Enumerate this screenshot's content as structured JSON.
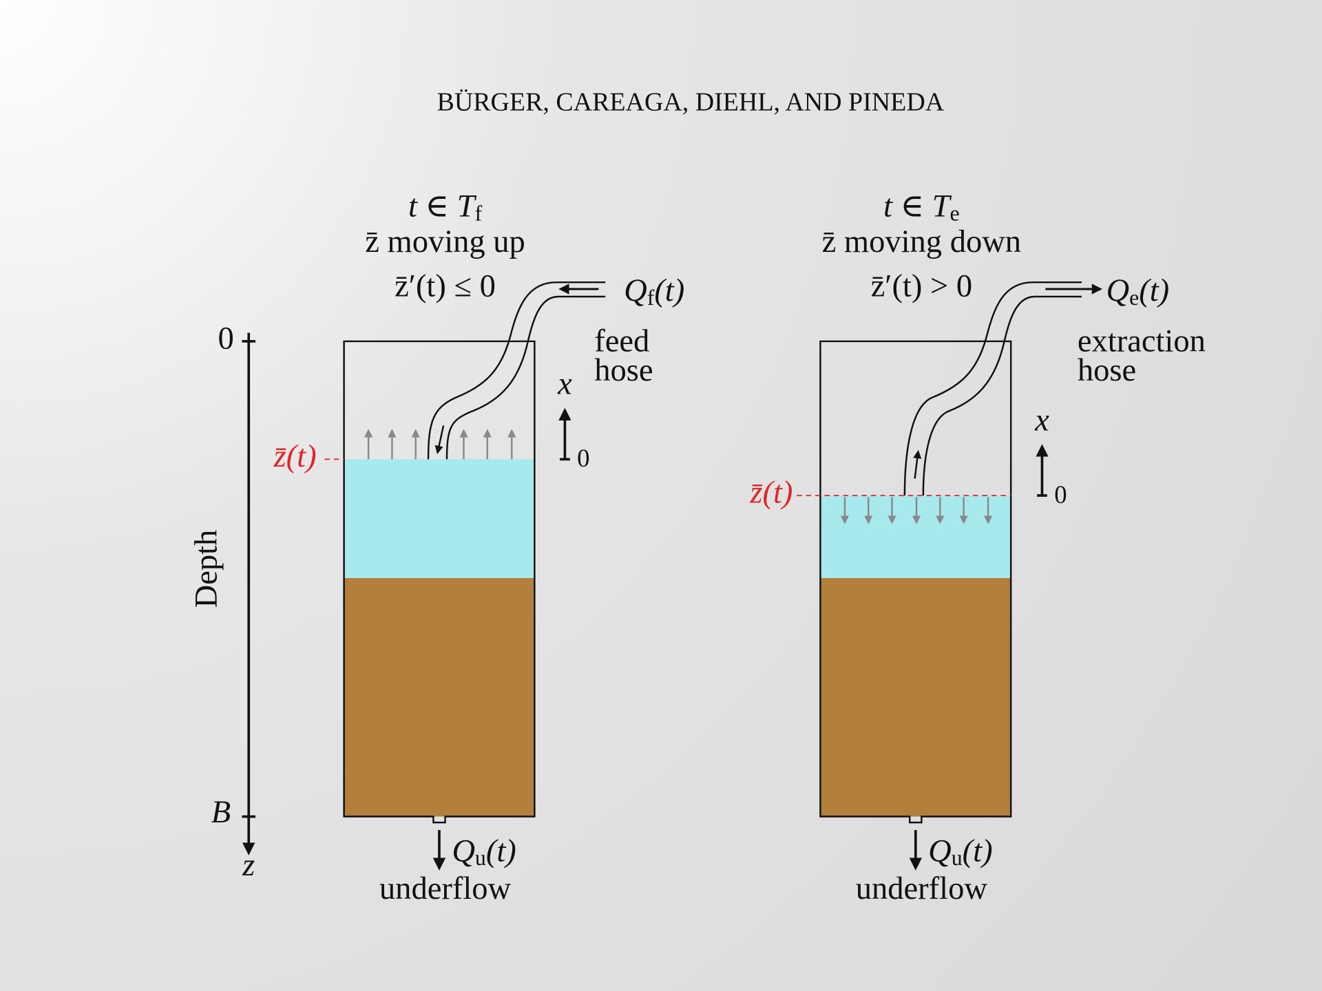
{
  "header": {
    "running_title": "BÜRGER, CAREAGA, DIEHL, AND PINEDA"
  },
  "depth_axis": {
    "top_label": "0",
    "bottom_label": "B",
    "title": "Depth",
    "direction_label": "z"
  },
  "panels": [
    {
      "condition": {
        "main": "t ∈ T",
        "sub": "f"
      },
      "motion": "z̄ moving up",
      "derivative": "z̄′(t) ≤ 0",
      "flow": {
        "symbol": "Q",
        "sub": "f",
        "arg": "(t)"
      },
      "hose_label": [
        "feed",
        "hose"
      ],
      "level_label": "z̄(t)",
      "local_axis": {
        "label": "x",
        "origin": "0"
      },
      "outflow": {
        "symbol": "Q",
        "sub": "u",
        "arg": "(t)"
      },
      "outflow_label": "underflow"
    },
    {
      "condition": {
        "main": "t ∈ T",
        "sub": "e"
      },
      "motion": "z̄ moving down",
      "derivative": "z̄′(t) > 0",
      "flow": {
        "symbol": "Q",
        "sub": "e",
        "arg": "(t)"
      },
      "hose_label": [
        "extraction",
        "hose"
      ],
      "level_label": "z̄(t)",
      "local_axis": {
        "label": "x",
        "origin": "0"
      },
      "outflow": {
        "symbol": "Q",
        "sub": "u",
        "arg": "(t)"
      },
      "outflow_label": "underflow"
    }
  ]
}
